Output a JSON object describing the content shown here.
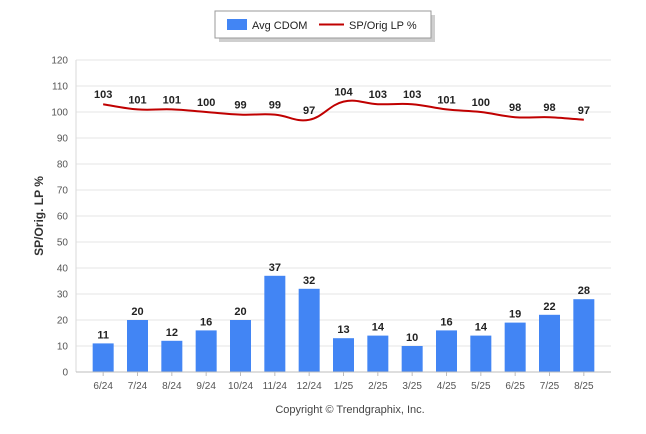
{
  "chart_data": {
    "type": "bar",
    "categories": [
      "6/24",
      "7/24",
      "8/24",
      "9/24",
      "10/24",
      "11/24",
      "12/24",
      "1/25",
      "2/25",
      "3/25",
      "4/25",
      "5/25",
      "6/25",
      "7/25",
      "8/25"
    ],
    "series": [
      {
        "name": "Avg CDOM",
        "kind": "bar",
        "color": "#4285f4",
        "values": [
          11,
          20,
          12,
          16,
          20,
          37,
          32,
          13,
          14,
          10,
          16,
          14,
          19,
          22,
          28
        ]
      },
      {
        "name": "SP/Orig LP %",
        "kind": "line",
        "color": "#c00000",
        "values": [
          103,
          101,
          101,
          100,
          99,
          99,
          97,
          104,
          103,
          103,
          101,
          100,
          98,
          98,
          97
        ]
      }
    ],
    "ylabel": "SP/Orig. LP %",
    "xlabel": "",
    "ylim": [
      0,
      120
    ],
    "yticks": [
      0,
      10,
      20,
      30,
      40,
      50,
      60,
      70,
      80,
      90,
      100,
      110,
      120
    ],
    "grid": true,
    "legend_position": "top-center",
    "footer": "Copyright © Trendgraphix, Inc."
  }
}
